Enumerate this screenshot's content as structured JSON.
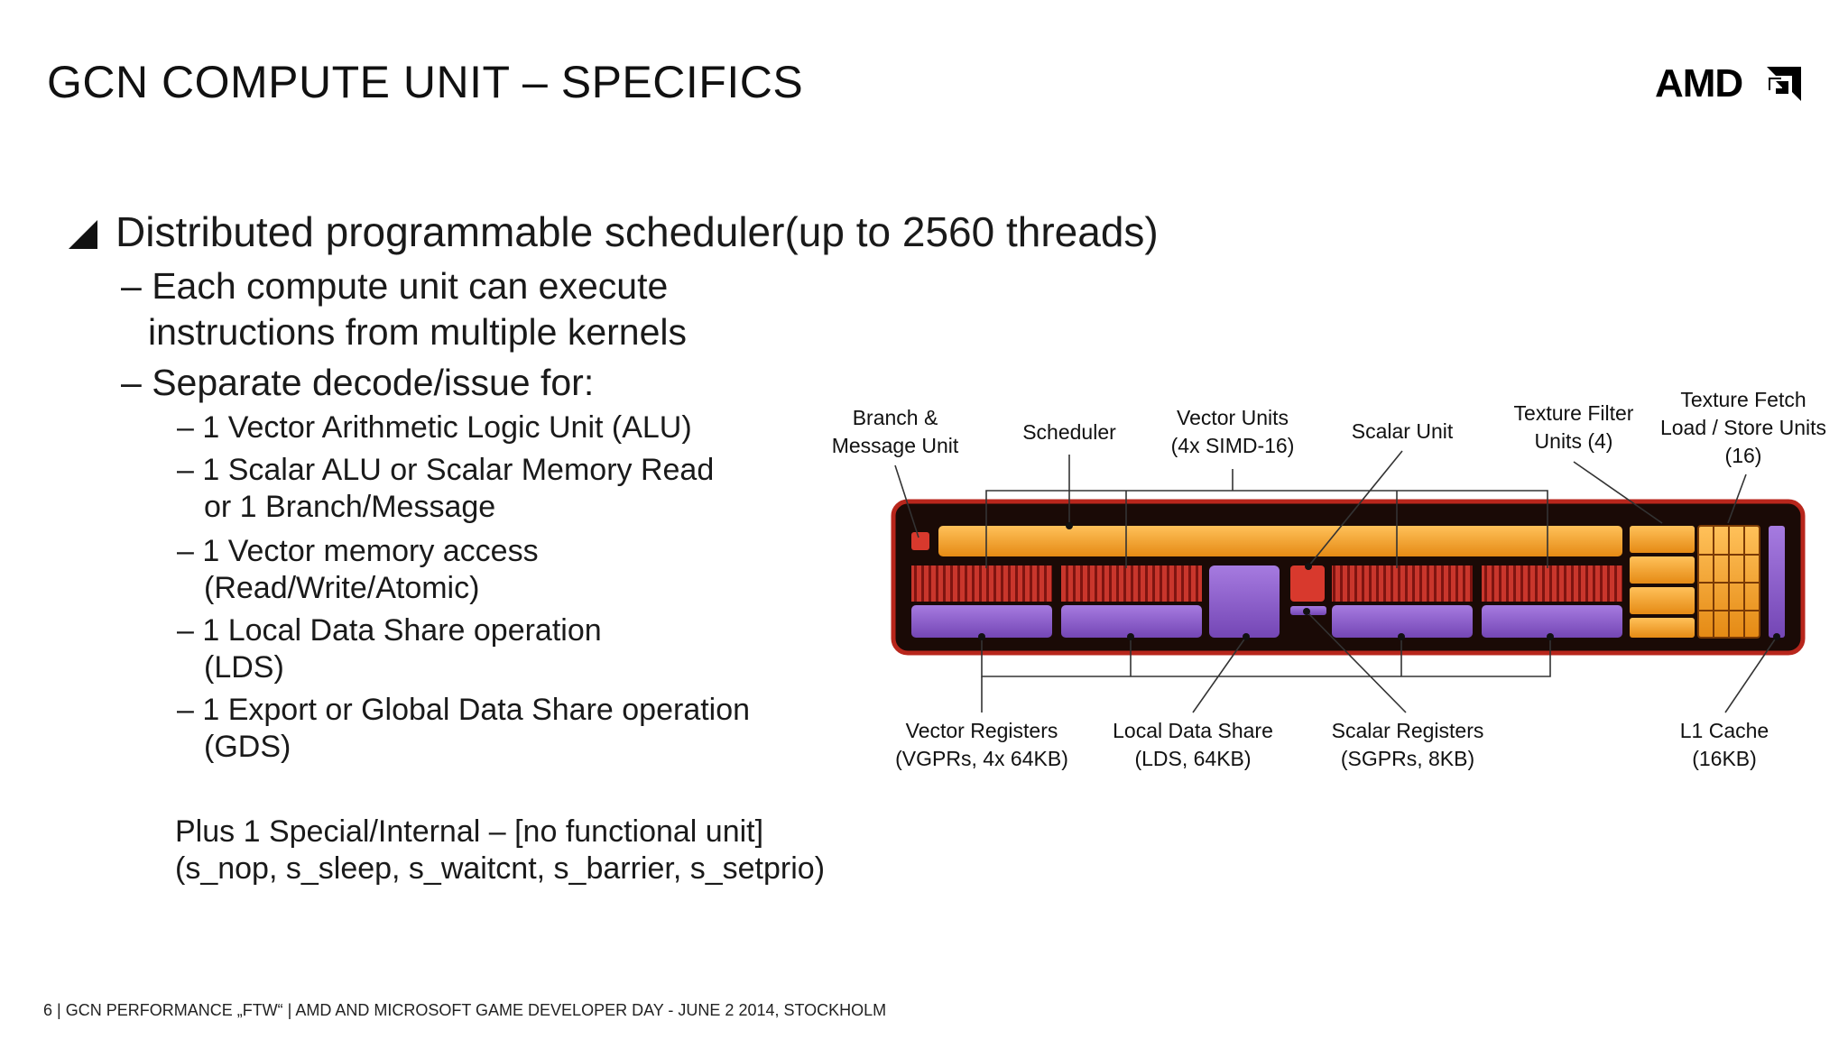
{
  "slide": {
    "title": "GCN COMPUTE UNIT – SPECIFICS",
    "logo_text": "AMD",
    "footer": "6  |  GCN PERFORMANCE „FTW“  | AMD AND MICROSOFT GAME DEVELOPER DAY - JUNE 2 2014, STOCKHOLM"
  },
  "content": {
    "bullet1": "Distributed programmable scheduler(up to 2560 threads)",
    "sub1_line1": "– Each compute unit can execute",
    "sub1_line2": "instructions from multiple kernels",
    "sub2": "– Separate decode/issue for:",
    "item1": "– 1 Vector  Arithmetic Logic Unit (ALU)",
    "item2_line1": "– 1 Scalar ALU or Scalar Memory Read",
    "item2_line2": "or 1 Branch/Message",
    "item3_line1": "– 1 Vector memory access",
    "item3_line2": "(Read/Write/Atomic)",
    "item4_line1": "– 1 Local Data Share operation",
    "item4_line2": "(LDS)",
    "item5_line1": "– 1 Export or Global Data Share operation",
    "item5_line2": "(GDS)",
    "plus_line1": "Plus 1 Special/Internal  – [no functional unit]",
    "plus_line2": "(s_nop, s_sleep, s_waitcnt, s_barrier, s_setprio)"
  },
  "diagram": {
    "top_labels": {
      "branch_line1": "Branch &",
      "branch_line2": "Message Unit",
      "scheduler": "Scheduler",
      "vector_line1": "Vector Units",
      "vector_line2": "(4x SIMD-16)",
      "scalar_unit": "Scalar Unit",
      "tex_filter_line1": "Texture Filter",
      "tex_filter_line2": "Units (4)",
      "tex_fetch_line1": "Texture Fetch",
      "tex_fetch_line2": "Load / Store Units",
      "tex_fetch_line3": "(16)"
    },
    "bottom_labels": {
      "vgpr_line1": "Vector Registers",
      "vgpr_line2": "(VGPRs, 4x 64KB)",
      "lds_line1": "Local Data Share",
      "lds_line2": "(LDS, 64KB)",
      "sgpr_line1": "Scalar Registers",
      "sgpr_line2": "(SGPRs, 8KB)",
      "l1_line1": "L1 Cache",
      "l1_line2": "(16KB)"
    },
    "colors": {
      "orange": "#f5a02a",
      "red": "#c8352b",
      "purple": "#8a5bc8",
      "frame": "#1a0a06",
      "frame_edge": "#b8261c"
    }
  }
}
